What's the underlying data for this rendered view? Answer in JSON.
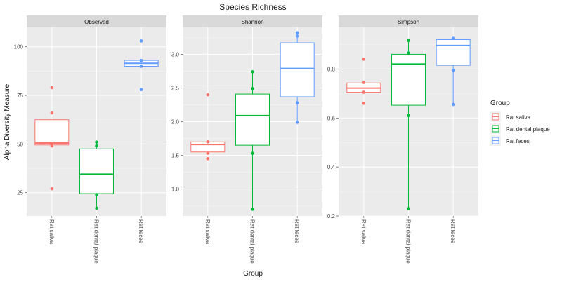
{
  "chart_data": {
    "type": "boxplot",
    "title": "Species Richness",
    "xlabel": "Group",
    "ylabel": "Alpha Diversity Measure",
    "categories": [
      "Rat saliva",
      "Rat dental plaque",
      "Rat feces"
    ],
    "colors": {
      "Rat saliva": "#F8766D",
      "Rat dental plaque": "#00BA38",
      "Rat feces": "#619CFF"
    },
    "legend": {
      "title": "Group",
      "placement": "right",
      "entries": [
        "Rat saliva",
        "Rat dental plaque",
        "Rat feces"
      ]
    },
    "panels": [
      {
        "name": "Observed",
        "ylim": [
          13,
          110
        ],
        "yticks": [
          25,
          50,
          75,
          100
        ],
        "ytick_labels": [
          "25",
          "50",
          "75",
          "100"
        ],
        "boxes": [
          {
            "group": "Rat saliva",
            "min": 49,
            "q1": 49.5,
            "median": 50.5,
            "q3": 62.5,
            "max": 62.5,
            "points": [
              79,
              66,
              50,
              49,
              27
            ]
          },
          {
            "group": "Rat dental plaque",
            "min": 17,
            "q1": 24.5,
            "median": 34.5,
            "q3": 47.5,
            "max": 51,
            "points": [
              51,
              49,
              24,
              17
            ]
          },
          {
            "group": "Rat feces",
            "min": 90,
            "q1": 90,
            "median": 91.5,
            "q3": 93,
            "max": 93,
            "points": [
              103,
              93,
              90,
              78
            ]
          }
        ]
      },
      {
        "name": "Shannon",
        "ylim": [
          0.6,
          3.4
        ],
        "yticks": [
          1.0,
          1.5,
          2.0,
          2.5,
          3.0
        ],
        "ytick_labels": [
          "1.0",
          "1.5",
          "2.0",
          "2.5",
          "3.0"
        ],
        "boxes": [
          {
            "group": "Rat saliva",
            "min": 1.55,
            "q1": 1.55,
            "median": 1.66,
            "q3": 1.7,
            "max": 1.7,
            "points": [
              2.4,
              1.7,
              1.53,
              1.45
            ]
          },
          {
            "group": "Rat dental plaque",
            "min": 0.7,
            "q1": 1.65,
            "median": 2.09,
            "q3": 2.41,
            "max": 2.74,
            "points": [
              2.74,
              2.49,
              1.53,
              0.7
            ]
          },
          {
            "group": "Rat feces",
            "min": 1.99,
            "q1": 2.37,
            "median": 2.79,
            "q3": 3.17,
            "max": 3.32,
            "points": [
              3.32,
              3.27,
              2.28,
              1.99
            ]
          }
        ]
      },
      {
        "name": "Simpson",
        "ylim": [
          0.2,
          0.97
        ],
        "yticks": [
          0.2,
          0.4,
          0.6,
          0.8
        ],
        "ytick_labels": [
          "0.2",
          "0.4",
          "0.6",
          "0.8"
        ],
        "boxes": [
          {
            "group": "Rat saliva",
            "min": 0.705,
            "q1": 0.705,
            "median": 0.722,
            "q3": 0.743,
            "max": 0.743,
            "points": [
              0.84,
              0.745,
              0.705,
              0.66
            ]
          },
          {
            "group": "Rat dental plaque",
            "min": 0.23,
            "q1": 0.652,
            "median": 0.82,
            "q3": 0.86,
            "max": 0.916,
            "points": [
              0.916,
              0.865,
              0.61,
              0.23
            ]
          },
          {
            "group": "Rat feces",
            "min": 0.655,
            "q1": 0.815,
            "median": 0.896,
            "q3": 0.92,
            "max": 0.925,
            "points": [
              0.925,
              0.795,
              0.655
            ]
          }
        ]
      }
    ]
  }
}
